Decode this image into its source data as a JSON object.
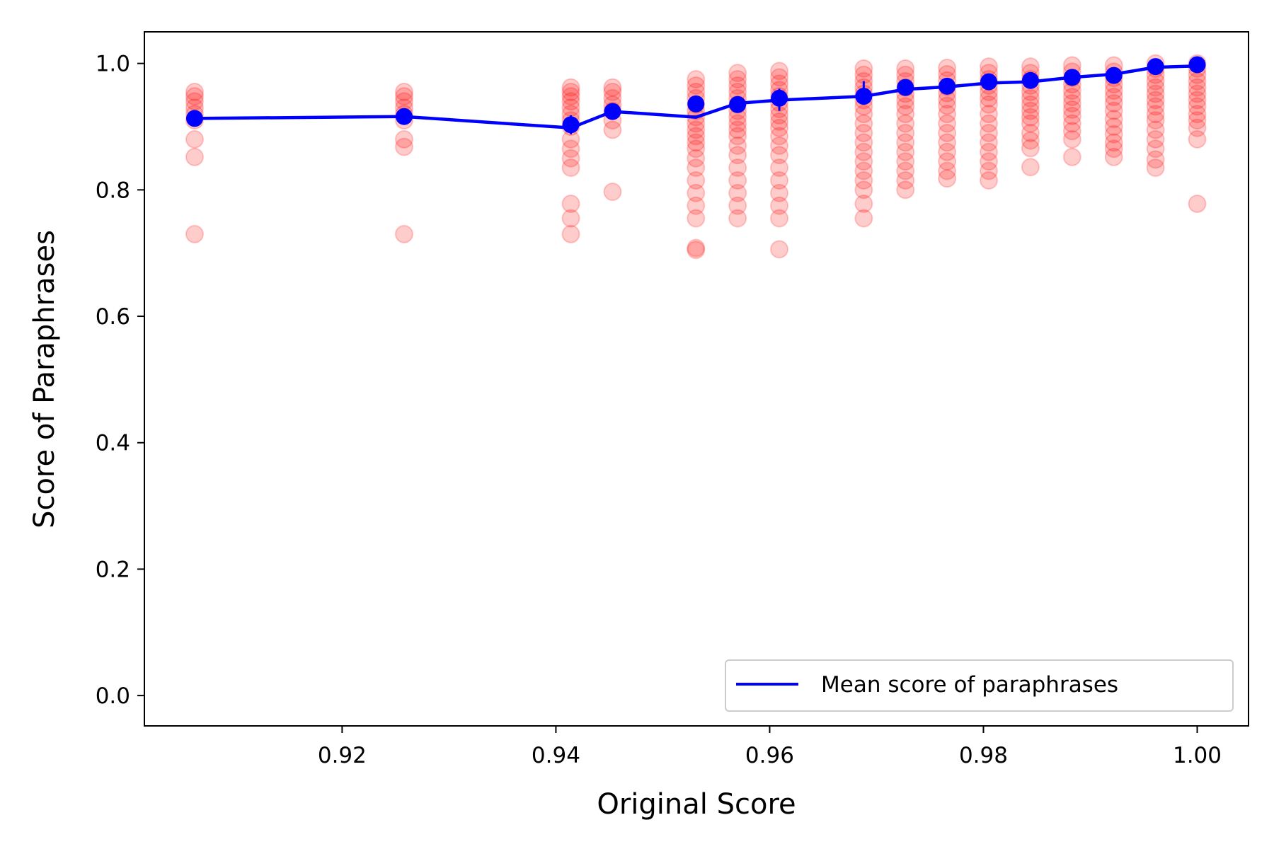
{
  "chart_data": {
    "type": "scatter",
    "xlabel": "Original Score",
    "ylabel": "Score of Paraphrases",
    "xlim": [
      0.9015,
      1.0048
    ],
    "ylim": [
      -0.048,
      1.05
    ],
    "x_ticks": [
      "0.92",
      "0.94",
      "0.96",
      "0.98",
      "1.00"
    ],
    "y_ticks": [
      "0.0",
      "0.2",
      "0.4",
      "0.6",
      "0.8",
      "1.0"
    ],
    "x_tick_values": [
      0.92,
      0.94,
      0.96,
      0.98,
      1.0
    ],
    "y_tick_values": [
      0.0,
      0.2,
      0.4,
      0.6,
      0.8,
      1.0
    ],
    "grid": false,
    "legend": {
      "placement": "lower right",
      "entries": [
        "Mean score of paraphrases"
      ]
    },
    "colors": {
      "scatter": "#ff0000",
      "mean_line": "#0000ff",
      "axes": "#000000"
    },
    "series": [
      {
        "kind": "scatter",
        "color": "#ff0000",
        "groups": [
          {
            "x": 0.9062,
            "y": [
              0.955,
              0.948,
              0.94,
              0.93,
              0.92,
              0.91,
              0.88,
              0.852,
              0.73
            ]
          },
          {
            "x": 0.9258,
            "y": [
              0.955,
              0.948,
              0.94,
              0.93,
              0.92,
              0.91,
              0.88,
              0.868,
              0.73
            ]
          },
          {
            "x": 0.9414,
            "y": [
              0.962,
              0.955,
              0.948,
              0.94,
              0.93,
              0.92,
              0.91,
              0.9,
              0.88,
              0.865,
              0.85,
              0.835,
              0.778,
              0.755,
              0.73
            ]
          },
          {
            "x": 0.9453,
            "y": [
              0.962,
              0.955,
              0.945,
              0.935,
              0.925,
              0.91,
              0.895,
              0.797
            ]
          },
          {
            "x": 0.9531,
            "y": [
              0.975,
              0.965,
              0.955,
              0.945,
              0.935,
              0.925,
              0.915,
              0.905,
              0.895,
              0.885,
              0.875,
              0.865,
              0.85,
              0.835,
              0.815,
              0.795,
              0.775,
              0.755,
              0.708,
              0.705
            ]
          },
          {
            "x": 0.957,
            "y": [
              0.985,
              0.975,
              0.965,
              0.955,
              0.945,
              0.935,
              0.925,
              0.915,
              0.905,
              0.895,
              0.885,
              0.87,
              0.855,
              0.835,
              0.815,
              0.795,
              0.775,
              0.755
            ]
          },
          {
            "x": 0.9609,
            "y": [
              0.988,
              0.978,
              0.968,
              0.958,
              0.948,
              0.938,
              0.928,
              0.918,
              0.908,
              0.898,
              0.885,
              0.87,
              0.855,
              0.835,
              0.815,
              0.795,
              0.775,
              0.755,
              0.706
            ]
          },
          {
            "x": 0.9688,
            "y": [
              0.992,
              0.982,
              0.972,
              0.962,
              0.952,
              0.942,
              0.932,
              0.92,
              0.905,
              0.89,
              0.875,
              0.86,
              0.845,
              0.83,
              0.815,
              0.8,
              0.778,
              0.755
            ]
          },
          {
            "x": 0.9727,
            "y": [
              0.992,
              0.982,
              0.972,
              0.962,
              0.952,
              0.942,
              0.932,
              0.92,
              0.905,
              0.89,
              0.875,
              0.86,
              0.845,
              0.83,
              0.815,
              0.8
            ]
          },
          {
            "x": 0.9766,
            "y": [
              0.993,
              0.983,
              0.973,
              0.963,
              0.953,
              0.943,
              0.933,
              0.92,
              0.905,
              0.89,
              0.875,
              0.86,
              0.845,
              0.83,
              0.818
            ]
          },
          {
            "x": 0.9805,
            "y": [
              0.995,
              0.985,
              0.975,
              0.965,
              0.955,
              0.945,
              0.935,
              0.92,
              0.905,
              0.89,
              0.875,
              0.86,
              0.845,
              0.83,
              0.815
            ]
          },
          {
            "x": 0.9844,
            "y": [
              0.995,
              0.985,
              0.975,
              0.965,
              0.955,
              0.945,
              0.935,
              0.925,
              0.915,
              0.905,
              0.89,
              0.878,
              0.866,
              0.836
            ]
          },
          {
            "x": 0.9883,
            "y": [
              0.997,
              0.987,
              0.977,
              0.967,
              0.957,
              0.947,
              0.937,
              0.927,
              0.917,
              0.905,
              0.893,
              0.88,
              0.852
            ]
          },
          {
            "x": 0.9922,
            "y": [
              0.997,
              0.987,
              0.977,
              0.967,
              0.957,
              0.947,
              0.937,
              0.925,
              0.912,
              0.9,
              0.888,
              0.875,
              0.865,
              0.852
            ]
          },
          {
            "x": 0.9961,
            "y": [
              1.0,
              0.992,
              0.982,
              0.972,
              0.962,
              0.952,
              0.942,
              0.932,
              0.92,
              0.91,
              0.895,
              0.88,
              0.865,
              0.848,
              0.835
            ]
          },
          {
            "x": 1.0,
            "y": [
              1.0,
              0.992,
              0.982,
              0.972,
              0.962,
              0.952,
              0.942,
              0.932,
              0.92,
              0.91,
              0.898,
              0.88,
              0.778
            ]
          }
        ]
      },
      {
        "kind": "line",
        "name": "Mean score of paraphrases",
        "color": "#0000ff",
        "x": [
          0.9062,
          0.9258,
          0.9414,
          0.9453,
          0.9531,
          0.957,
          0.9609,
          0.9688,
          0.9727,
          0.9766,
          0.9805,
          0.9844,
          0.9883,
          0.9922,
          0.9961,
          1.0
        ],
        "y": [
          0.913,
          0.916,
          0.898,
          0.924,
          0.915,
          0.937,
          0.942,
          0.948,
          0.959,
          0.963,
          0.969,
          0.971,
          0.978,
          0.983,
          0.994,
          0.996
        ],
        "markers": [
          {
            "x": 0.9062,
            "y": 0.913
          },
          {
            "x": 0.9258,
            "y": 0.916
          },
          {
            "x": 0.9414,
            "y": 0.903
          },
          {
            "x": 0.9453,
            "y": 0.924
          },
          {
            "x": 0.9531,
            "y": 0.936
          },
          {
            "x": 0.957,
            "y": 0.935
          },
          {
            "x": 0.9609,
            "y": 0.945
          },
          {
            "x": 0.9688,
            "y": 0.948
          },
          {
            "x": 0.9727,
            "y": 0.962
          },
          {
            "x": 0.9766,
            "y": 0.964
          },
          {
            "x": 0.9805,
            "y": 0.971
          },
          {
            "x": 0.9844,
            "y": 0.973
          },
          {
            "x": 0.9883,
            "y": 0.978
          },
          {
            "x": 0.9922,
            "y": 0.981
          },
          {
            "x": 0.9961,
            "y": 0.995
          },
          {
            "x": 1.0,
            "y": 0.998
          }
        ],
        "error_bars": [
          {
            "x": 0.9062,
            "low": 0.908,
            "high": 0.918
          },
          {
            "x": 0.9258,
            "low": 0.911,
            "high": 0.921
          },
          {
            "x": 0.9414,
            "low": 0.888,
            "high": 0.918
          },
          {
            "x": 0.9453,
            "low": 0.918,
            "high": 0.93
          },
          {
            "x": 0.9531,
            "low": 0.925,
            "high": 0.945
          },
          {
            "x": 0.957,
            "low": 0.928,
            "high": 0.944
          },
          {
            "x": 0.9609,
            "low": 0.925,
            "high": 0.96
          },
          {
            "x": 0.9688,
            "low": 0.935,
            "high": 0.972
          },
          {
            "x": 0.9727,
            "low": 0.954,
            "high": 0.97
          },
          {
            "x": 0.9766,
            "low": 0.956,
            "high": 0.971
          },
          {
            "x": 0.9805,
            "low": 0.962,
            "high": 0.979
          },
          {
            "x": 0.9844,
            "low": 0.966,
            "high": 0.98
          },
          {
            "x": 0.9883,
            "low": 0.972,
            "high": 0.984
          },
          {
            "x": 0.9922,
            "low": 0.975,
            "high": 0.987
          },
          {
            "x": 0.9961,
            "low": 0.985,
            "high": 1.005
          },
          {
            "x": 1.0,
            "low": 0.988,
            "high": 1.006
          }
        ]
      }
    ]
  }
}
